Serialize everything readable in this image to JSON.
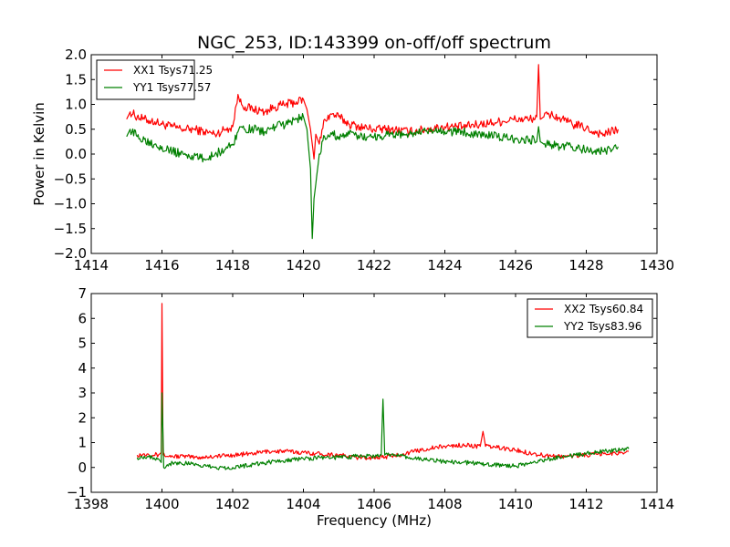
{
  "chart_data": [
    {
      "type": "line",
      "title": "NGC_253, ID:143399 on-off/off spectrum",
      "xlabel": "",
      "ylabel": "Power in Kelvin",
      "xlim": [
        1414,
        1430
      ],
      "ylim": [
        -2.0,
        2.0
      ],
      "xticks": [
        1414,
        1416,
        1418,
        1420,
        1422,
        1424,
        1426,
        1428,
        1430
      ],
      "xtick_labels": [
        "1414",
        "1416",
        "1418",
        "1420",
        "1422",
        "1424",
        "1426",
        "1428",
        "1430"
      ],
      "yticks": [
        -2.0,
        -1.5,
        -1.0,
        -0.5,
        0.0,
        0.5,
        1.0,
        1.5,
        2.0
      ],
      "ytick_labels": [
        "−2.0",
        "−1.5",
        "−1.0",
        "−0.5",
        "0.0",
        "0.5",
        "1.0",
        "1.5",
        "2.0"
      ],
      "grid": false,
      "legend_position": "top-left",
      "series": [
        {
          "name": "XX1 Tsys71.25",
          "color": "#ff0000",
          "x": [
            1415.0,
            1415.1,
            1415.3,
            1415.5,
            1415.8,
            1416.0,
            1416.3,
            1416.6,
            1416.9,
            1417.2,
            1417.5,
            1417.8,
            1418.0,
            1418.15,
            1418.2,
            1418.35,
            1418.6,
            1418.9,
            1419.2,
            1419.5,
            1419.8,
            1420.0,
            1420.1,
            1420.2,
            1420.3,
            1420.35,
            1420.45,
            1420.6,
            1420.8,
            1421.0,
            1421.3,
            1421.6,
            1422.0,
            1422.5,
            1423.0,
            1423.5,
            1424.0,
            1424.5,
            1425.0,
            1425.5,
            1426.0,
            1426.4,
            1426.6,
            1426.65,
            1426.7,
            1426.8,
            1427.0,
            1427.3,
            1427.6,
            1427.9,
            1428.2,
            1428.5,
            1428.9
          ],
          "y": [
            0.7,
            0.85,
            0.75,
            0.7,
            0.65,
            0.6,
            0.55,
            0.5,
            0.5,
            0.45,
            0.4,
            0.5,
            0.55,
            1.2,
            1.05,
            0.95,
            0.9,
            0.85,
            0.95,
            1.0,
            1.05,
            1.1,
            0.9,
            0.5,
            -0.1,
            0.4,
            0.2,
            0.7,
            0.8,
            0.75,
            0.6,
            0.55,
            0.5,
            0.5,
            0.45,
            0.5,
            0.55,
            0.55,
            0.6,
            0.65,
            0.7,
            0.7,
            0.75,
            1.8,
            0.7,
            0.75,
            0.8,
            0.7,
            0.6,
            0.55,
            0.45,
            0.4,
            0.5
          ]
        },
        {
          "name": "YY1 Tsys77.57",
          "color": "#008000",
          "x": [
            1415.0,
            1415.1,
            1415.3,
            1415.5,
            1415.8,
            1416.0,
            1416.3,
            1416.6,
            1416.9,
            1417.2,
            1417.5,
            1417.8,
            1418.0,
            1418.15,
            1418.2,
            1418.35,
            1418.6,
            1418.9,
            1419.2,
            1419.5,
            1419.8,
            1420.0,
            1420.1,
            1420.2,
            1420.25,
            1420.3,
            1420.35,
            1420.45,
            1420.6,
            1420.8,
            1421.0,
            1421.3,
            1421.6,
            1422.0,
            1422.5,
            1423.0,
            1423.5,
            1424.0,
            1424.5,
            1425.0,
            1425.5,
            1426.0,
            1426.4,
            1426.6,
            1426.65,
            1426.7,
            1426.8,
            1427.0,
            1427.3,
            1427.6,
            1427.9,
            1428.2,
            1428.5,
            1428.9
          ],
          "y": [
            0.35,
            0.5,
            0.35,
            0.3,
            0.2,
            0.15,
            0.05,
            0.0,
            -0.05,
            -0.1,
            0.0,
            0.1,
            0.2,
            0.45,
            0.55,
            0.5,
            0.5,
            0.45,
            0.55,
            0.6,
            0.7,
            0.75,
            0.5,
            -0.3,
            -1.7,
            -0.9,
            -0.6,
            0.0,
            0.35,
            0.4,
            0.35,
            0.4,
            0.35,
            0.35,
            0.4,
            0.4,
            0.45,
            0.45,
            0.45,
            0.4,
            0.35,
            0.3,
            0.3,
            0.25,
            0.55,
            0.25,
            0.2,
            0.2,
            0.15,
            0.15,
            0.1,
            0.05,
            0.05,
            0.15
          ]
        }
      ]
    },
    {
      "type": "line",
      "title": "",
      "xlabel": "Frequency (MHz)",
      "ylabel": "",
      "xlim": [
        1398,
        1414
      ],
      "ylim": [
        -1,
        7
      ],
      "xticks": [
        1398,
        1400,
        1402,
        1404,
        1406,
        1408,
        1410,
        1412,
        1414
      ],
      "xtick_labels": [
        "1398",
        "1400",
        "1402",
        "1404",
        "1406",
        "1408",
        "1410",
        "1412",
        "1414"
      ],
      "yticks": [
        -1,
        0,
        1,
        2,
        3,
        4,
        5,
        6,
        7
      ],
      "ytick_labels": [
        "−1",
        "0",
        "1",
        "2",
        "3",
        "4",
        "5",
        "6",
        "7"
      ],
      "grid": false,
      "legend_position": "top-right",
      "series": [
        {
          "name": "XX2 Tsys60.84",
          "color": "#ff0000",
          "x": [
            1399.3,
            1399.6,
            1399.9,
            1399.98,
            1400.0,
            1400.03,
            1400.2,
            1400.6,
            1401.0,
            1401.5,
            1402.0,
            1402.5,
            1403.0,
            1403.5,
            1404.0,
            1404.5,
            1405.0,
            1405.5,
            1406.0,
            1406.5,
            1407.0,
            1407.5,
            1408.0,
            1408.5,
            1409.0,
            1409.08,
            1409.15,
            1409.5,
            1410.0,
            1410.5,
            1411.0,
            1411.5,
            1412.0,
            1412.5,
            1413.0,
            1413.2
          ],
          "y": [
            0.5,
            0.55,
            0.5,
            0.6,
            6.6,
            0.5,
            0.45,
            0.45,
            0.4,
            0.45,
            0.5,
            0.55,
            0.65,
            0.65,
            0.6,
            0.55,
            0.5,
            0.4,
            0.4,
            0.45,
            0.6,
            0.75,
            0.85,
            0.9,
            0.85,
            1.45,
            0.85,
            0.8,
            0.7,
            0.55,
            0.45,
            0.45,
            0.5,
            0.55,
            0.6,
            0.65
          ]
        },
        {
          "name": "YY2 Tsys83.96",
          "color": "#008000",
          "x": [
            1399.3,
            1399.6,
            1399.9,
            1399.98,
            1400.0,
            1400.05,
            1400.3,
            1400.7,
            1401.0,
            1401.5,
            1402.0,
            1402.5,
            1403.0,
            1403.5,
            1404.0,
            1404.5,
            1405.0,
            1405.5,
            1406.0,
            1406.2,
            1406.25,
            1406.3,
            1406.6,
            1407.0,
            1407.5,
            1408.0,
            1408.5,
            1409.0,
            1409.5,
            1410.0,
            1410.5,
            1411.0,
            1411.5,
            1412.0,
            1412.5,
            1413.0,
            1413.2
          ],
          "y": [
            0.4,
            0.45,
            0.35,
            0.2,
            3.0,
            0.0,
            0.2,
            0.15,
            0.1,
            0.0,
            0.0,
            0.1,
            0.2,
            0.3,
            0.35,
            0.4,
            0.4,
            0.45,
            0.45,
            0.5,
            2.75,
            0.5,
            0.5,
            0.4,
            0.3,
            0.25,
            0.2,
            0.15,
            0.1,
            0.05,
            0.2,
            0.35,
            0.45,
            0.55,
            0.65,
            0.7,
            0.75
          ]
        }
      ]
    }
  ]
}
